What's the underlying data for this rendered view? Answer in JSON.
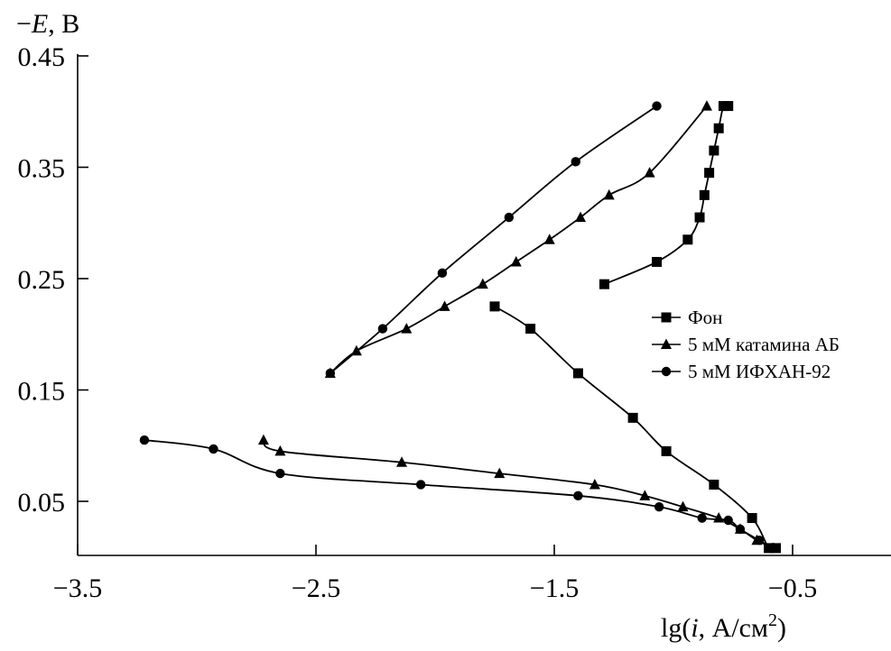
{
  "chart_data": {
    "type": "line",
    "ylabel_prefix": "−",
    "ylabel_var": "E",
    "ylabel_suffix": ", В",
    "xlabel_prefix": "lg(",
    "xlabel_var": "i",
    "xlabel_mid": ", А/см",
    "xlabel_sup": "2",
    "xlabel_suffix": ")",
    "xlim": [
      -3.5,
      0
    ],
    "ylim": [
      0,
      0.45
    ],
    "x_ticks": [
      -3.5,
      -2.5,
      -1.5,
      -0.5
    ],
    "x_tick_labels": [
      "−3.5",
      "−2.5",
      "−1.5",
      "−0.5"
    ],
    "y_ticks": [
      0.45,
      0.35,
      0.25,
      0.15,
      0.05
    ],
    "y_tick_labels": [
      "0.45",
      "0.35",
      "0.25",
      "0.15",
      "0.05"
    ],
    "grid": false,
    "legend_position": "right",
    "series": [
      {
        "name": "Фон",
        "marker": "square",
        "branches": [
          {
            "x": [
              -1.29,
              -1.07,
              -0.94,
              -0.89,
              -0.87,
              -0.85,
              -0.83,
              -0.81,
              -0.79,
              -0.77
            ],
            "y": [
              0.245,
              0.265,
              0.285,
              0.305,
              0.325,
              0.345,
              0.365,
              0.385,
              0.405,
              0.405
            ]
          },
          {
            "x": [
              -1.75,
              -1.6,
              -1.4,
              -1.17,
              -1.03,
              -0.83,
              -0.67,
              -0.6,
              -0.57
            ],
            "y": [
              0.225,
              0.205,
              0.165,
              0.125,
              0.095,
              0.065,
              0.035,
              0.008,
              0.008
            ]
          }
        ]
      },
      {
        "name": "5 мМ катамина АБ",
        "marker": "triangle",
        "branches": [
          {
            "x": [
              -2.44,
              -2.33,
              -2.12,
              -1.96,
              -1.8,
              -1.66,
              -1.52,
              -1.39,
              -1.27,
              -1.1,
              -0.86
            ],
            "y": [
              0.165,
              0.185,
              0.205,
              0.225,
              0.245,
              0.265,
              0.285,
              0.305,
              0.325,
              0.345,
              0.405
            ]
          },
          {
            "x": [
              -2.72,
              -2.65,
              -2.14,
              -1.73,
              -1.33,
              -1.12,
              -0.96,
              -0.81,
              -0.72,
              -0.65,
              -0.58
            ],
            "y": [
              0.105,
              0.095,
              0.085,
              0.075,
              0.065,
              0.055,
              0.045,
              0.035,
              0.025,
              0.015,
              0.008
            ]
          }
        ]
      },
      {
        "name": "5 мМ ИФХАН-92",
        "marker": "circle",
        "branches": [
          {
            "x": [
              -2.44,
              -2.22,
              -1.97,
              -1.69,
              -1.41,
              -1.07
            ],
            "y": [
              0.165,
              0.205,
              0.255,
              0.305,
              0.355,
              0.405
            ]
          },
          {
            "x": [
              -3.22,
              -2.93,
              -2.65,
              -2.06,
              -1.4,
              -1.06,
              -0.88,
              -0.77,
              -0.72,
              -0.64,
              -0.58
            ],
            "y": [
              0.105,
              0.097,
              0.075,
              0.065,
              0.055,
              0.045,
              0.035,
              0.033,
              0.025,
              0.015,
              0.008
            ]
          }
        ]
      }
    ]
  }
}
